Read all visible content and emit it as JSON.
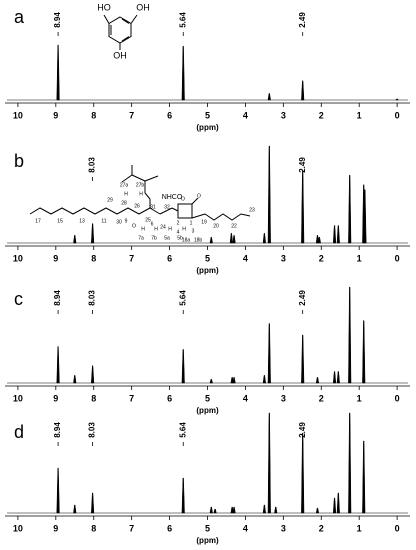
{
  "chart_data": [
    {
      "type": "spectrum",
      "label": "a",
      "xlabel": "(ppm)",
      "xlim": [
        10.34,
        -0.34
      ],
      "xticks": [
        10,
        9,
        8,
        7,
        6,
        5,
        4,
        3,
        2,
        1,
        0
      ],
      "color": "#000000",
      "x": [
        8.94,
        5.64,
        3.37,
        2.49,
        0
      ],
      "values": [
        100,
        98,
        12,
        35,
        2
      ],
      "peak_labels": [
        8.94,
        5.64,
        2.49
      ],
      "structure_labels": [
        "HO",
        "OH",
        "OH"
      ]
    },
    {
      "type": "spectrum",
      "label": "b",
      "xlabel": "(ppm)",
      "xlim": [
        10.34,
        -0.34
      ],
      "xticks": [
        10,
        9,
        8,
        7,
        6,
        5,
        4,
        3,
        2,
        1,
        0
      ],
      "color": "#000000",
      "x": [
        8.5,
        8.03,
        4.9,
        4.37,
        4.3,
        3.5,
        3.37,
        2.49,
        2.1,
        2.05,
        1.65,
        1.55,
        1.25,
        0.88,
        0.85
      ],
      "values": [
        8,
        20,
        6,
        10,
        8,
        10,
        100,
        75,
        8,
        6,
        18,
        18,
        70,
        60,
        55
      ],
      "peak_labels": [
        8.03,
        2.49
      ],
      "structure_labels": [
        "27a",
        "27b",
        "H",
        "H",
        "29",
        "28",
        "26",
        "31",
        "32",
        "NHCO",
        "30",
        "25",
        "O",
        "24",
        "O",
        "O",
        "2",
        "1",
        "3",
        "4",
        "19",
        "17",
        "15",
        "13",
        "11",
        "9",
        "6",
        "7a",
        "7b",
        "5a",
        "5b",
        "H",
        "H",
        "H",
        "H",
        "18a",
        "18b",
        "20",
        "22",
        "23"
      ]
    },
    {
      "type": "spectrum",
      "label": "c",
      "xlabel": "(ppm)",
      "xlim": [
        10.34,
        -0.34
      ],
      "xticks": [
        10,
        9,
        8,
        7,
        6,
        5,
        4,
        3,
        2,
        1,
        0
      ],
      "color": "#000000",
      "x": [
        8.94,
        8.5,
        8.03,
        5.64,
        4.9,
        4.35,
        4.3,
        3.5,
        3.37,
        2.49,
        2.1,
        1.65,
        1.55,
        1.25,
        0.88
      ],
      "values": [
        38,
        8,
        18,
        35,
        4,
        6,
        6,
        8,
        62,
        50,
        6,
        12,
        12,
        100,
        65
      ],
      "peak_labels": [
        8.94,
        8.03,
        5.64,
        2.49
      ]
    },
    {
      "type": "spectrum",
      "label": "d",
      "xlabel": "(ppm)",
      "xlim": [
        10.34,
        -0.34
      ],
      "xticks": [
        10,
        9,
        8,
        7,
        6,
        5,
        4,
        3,
        2,
        1,
        0
      ],
      "color": "#000000",
      "x": [
        8.94,
        8.5,
        8.03,
        5.64,
        4.9,
        4.8,
        4.35,
        4.3,
        3.5,
        3.37,
        3.2,
        2.49,
        2.1,
        1.65,
        1.55,
        1.25,
        0.88
      ],
      "values": [
        45,
        8,
        20,
        35,
        6,
        4,
        6,
        6,
        8,
        100,
        6,
        80,
        5,
        15,
        20,
        100,
        72
      ],
      "peak_labels": [
        8.94,
        8.03,
        5.64,
        2.49
      ]
    }
  ]
}
